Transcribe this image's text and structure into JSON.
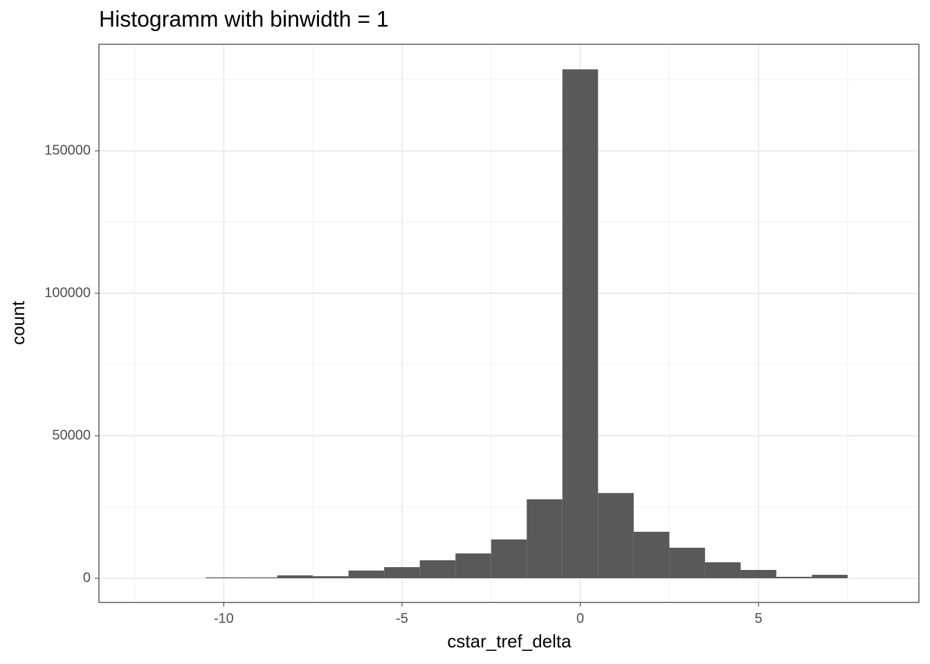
{
  "chart_data": {
    "type": "histogram",
    "title": "Histogramm with binwidth = 1",
    "x_label": "cstar_tref_delta",
    "y_label": "count",
    "bins": [
      -10.5,
      -9.5,
      -8.5,
      -7.5,
      -6.5,
      -5.5,
      -4.5,
      -3.5,
      -2.5,
      -1.5,
      -0.5,
      0.5,
      1.5,
      2.5,
      3.5,
      4.5,
      5.5,
      6.5,
      7.5
    ],
    "values": [
      300,
      300,
      1000,
      700,
      2700,
      3900,
      6300,
      8700,
      13600,
      27700,
      178600,
      29900,
      16300,
      10700,
      5600,
      2900,
      500,
      1200
    ],
    "color": "#595959",
    "xlim": [
      -13.5,
      9.5
    ],
    "xticks": [
      -10,
      -5,
      0,
      5
    ],
    "ylim": [
      -8500,
      187400
    ],
    "yticks": [
      0,
      50000,
      100000,
      150000
    ],
    "grid": true
  }
}
